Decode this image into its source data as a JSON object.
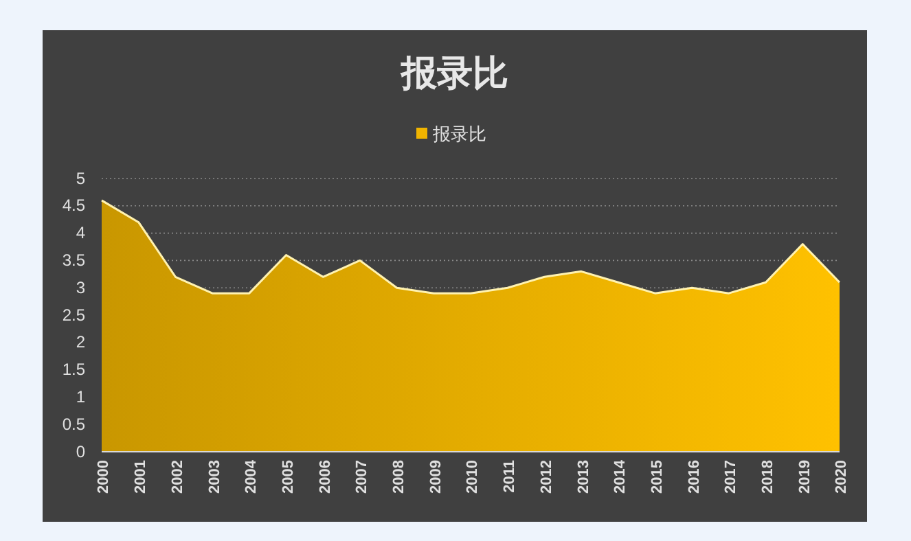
{
  "chart_data": {
    "type": "area",
    "title": "报录比",
    "categories": [
      "2000",
      "2001",
      "2002",
      "2003",
      "2004",
      "2005",
      "2006",
      "2007",
      "2008",
      "2009",
      "2010",
      "2011",
      "2012",
      "2013",
      "2014",
      "2015",
      "2016",
      "2017",
      "2018",
      "2019",
      "2020"
    ],
    "series": [
      {
        "name": "报录比",
        "color": "#f0b400",
        "values": [
          4.6,
          4.2,
          3.2,
          2.9,
          2.9,
          3.6,
          3.2,
          3.5,
          3.0,
          2.9,
          2.9,
          3.0,
          3.2,
          3.3,
          3.1,
          2.9,
          3.0,
          2.9,
          3.1,
          3.8,
          3.1
        ]
      }
    ],
    "ylim": [
      0,
      5
    ],
    "yticks": [
      0,
      0.5,
      1,
      1.5,
      2,
      2.5,
      3,
      3.5,
      4,
      4.5,
      5
    ],
    "grid": "y",
    "legend": "top"
  }
}
